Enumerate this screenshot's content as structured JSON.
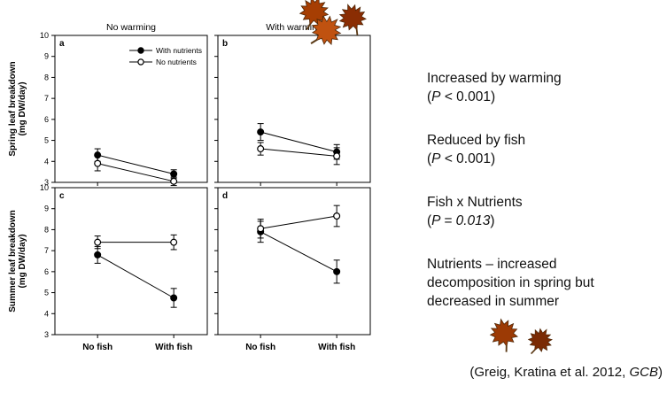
{
  "chart_data": {
    "type": "line",
    "x_categories": [
      "No fish",
      "With fish"
    ],
    "yticks": [
      3,
      4,
      5,
      6,
      7,
      8,
      9,
      10
    ],
    "ylim": [
      3,
      10
    ],
    "grid": false,
    "col_titles": [
      "No warming",
      "With warming"
    ],
    "row_ylabels": [
      [
        "Spring leaf breakdown",
        "(mg DW/day)"
      ],
      [
        "Summer leaf breakdown",
        "(mg DW/day)"
      ]
    ],
    "legend": {
      "position": "top-inside-panel-a",
      "entries": [
        {
          "label": "With nutrients",
          "marker": "filled"
        },
        {
          "label": "No nutrients",
          "marker": "open"
        }
      ]
    },
    "panels": [
      {
        "label": "a",
        "row": 0,
        "col": 0,
        "show_legend": true,
        "series": [
          {
            "name": "With nutrients",
            "marker": "filled",
            "values": [
              4.3,
              3.4
            ],
            "errors": [
              0.3,
              0.2
            ]
          },
          {
            "name": "No nutrients",
            "marker": "open",
            "values": [
              3.9,
              3.05
            ],
            "errors": [
              0.35,
              0.2
            ]
          }
        ]
      },
      {
        "label": "b",
        "row": 0,
        "col": 1,
        "show_legend": false,
        "series": [
          {
            "name": "With nutrients",
            "marker": "filled",
            "values": [
              5.4,
              4.45
            ],
            "errors": [
              0.4,
              0.35
            ]
          },
          {
            "name": "No nutrients",
            "marker": "open",
            "values": [
              4.6,
              4.25
            ],
            "errors": [
              0.3,
              0.4
            ]
          }
        ]
      },
      {
        "label": "c",
        "row": 1,
        "col": 0,
        "show_legend": false,
        "series": [
          {
            "name": "With nutrients",
            "marker": "filled",
            "values": [
              6.8,
              4.75
            ],
            "errors": [
              0.4,
              0.45
            ]
          },
          {
            "name": "No nutrients",
            "marker": "open",
            "values": [
              7.4,
              7.4
            ],
            "errors": [
              0.3,
              0.35
            ]
          }
        ]
      },
      {
        "label": "d",
        "row": 1,
        "col": 1,
        "show_legend": false,
        "series": [
          {
            "name": "With nutrients",
            "marker": "filled",
            "values": [
              7.9,
              6.0
            ],
            "errors": [
              0.5,
              0.55
            ]
          },
          {
            "name": "No nutrients",
            "marker": "open",
            "values": [
              8.05,
              8.65
            ],
            "errors": [
              0.45,
              0.5
            ]
          }
        ]
      }
    ]
  },
  "annotations": [
    {
      "title": "Increased by warming",
      "stat_pre": "(",
      "stat_italic": "P",
      "stat_post": " < 0.001)"
    },
    {
      "title": "Reduced by fish",
      "stat_pre": "(",
      "stat_italic": "P",
      "stat_post": " < 0.001)"
    },
    {
      "title": "Fish x Nutrients",
      "stat_pre": "(",
      "stat_italic": "P = 0.013",
      "stat_post": ")"
    },
    {
      "title": "Nutrients – increased decomposition in spring but decreased in summer"
    }
  ],
  "citation": {
    "pre": "(Greig, Kratina et al. 2012, ",
    "italic": "GCB",
    "post": ")"
  },
  "decor": {
    "leaf_colors": [
      "#a63e03",
      "#8a2d03",
      "#c05210",
      "#9c3a05",
      "#7a2a04"
    ]
  }
}
